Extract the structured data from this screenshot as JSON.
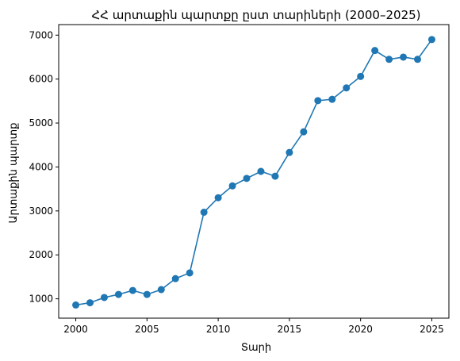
{
  "chart_data": {
    "type": "line",
    "title": "ՀՀ արտաքին պարտքը ըստ տարիների (2000–2025)",
    "xlabel": "Տարի",
    "ylabel": "Արտաքին պարտք",
    "xlim": [
      1998.8,
      2026.2
    ],
    "ylim": [
      560,
      7240
    ],
    "x_ticks": [
      2000,
      2005,
      2010,
      2015,
      2020,
      2025
    ],
    "y_ticks": [
      1000,
      2000,
      3000,
      4000,
      5000,
      6000,
      7000
    ],
    "grid": false,
    "series": [
      {
        "color": "#1f77b4",
        "marker": "circle",
        "x": [
          2000,
          2001,
          2002,
          2003,
          2004,
          2005,
          2006,
          2007,
          2008,
          2009,
          2010,
          2011,
          2012,
          2013,
          2014,
          2015,
          2016,
          2017,
          2018,
          2019,
          2020,
          2021,
          2022,
          2023,
          2024,
          2025
        ],
        "y": [
          860,
          910,
          1030,
          1100,
          1190,
          1100,
          1210,
          1460,
          1590,
          2970,
          3300,
          3570,
          3740,
          3900,
          3790,
          4330,
          4800,
          5510,
          5540,
          5800,
          6060,
          6650,
          6450,
          6500,
          6450,
          6900
        ]
      }
    ]
  }
}
